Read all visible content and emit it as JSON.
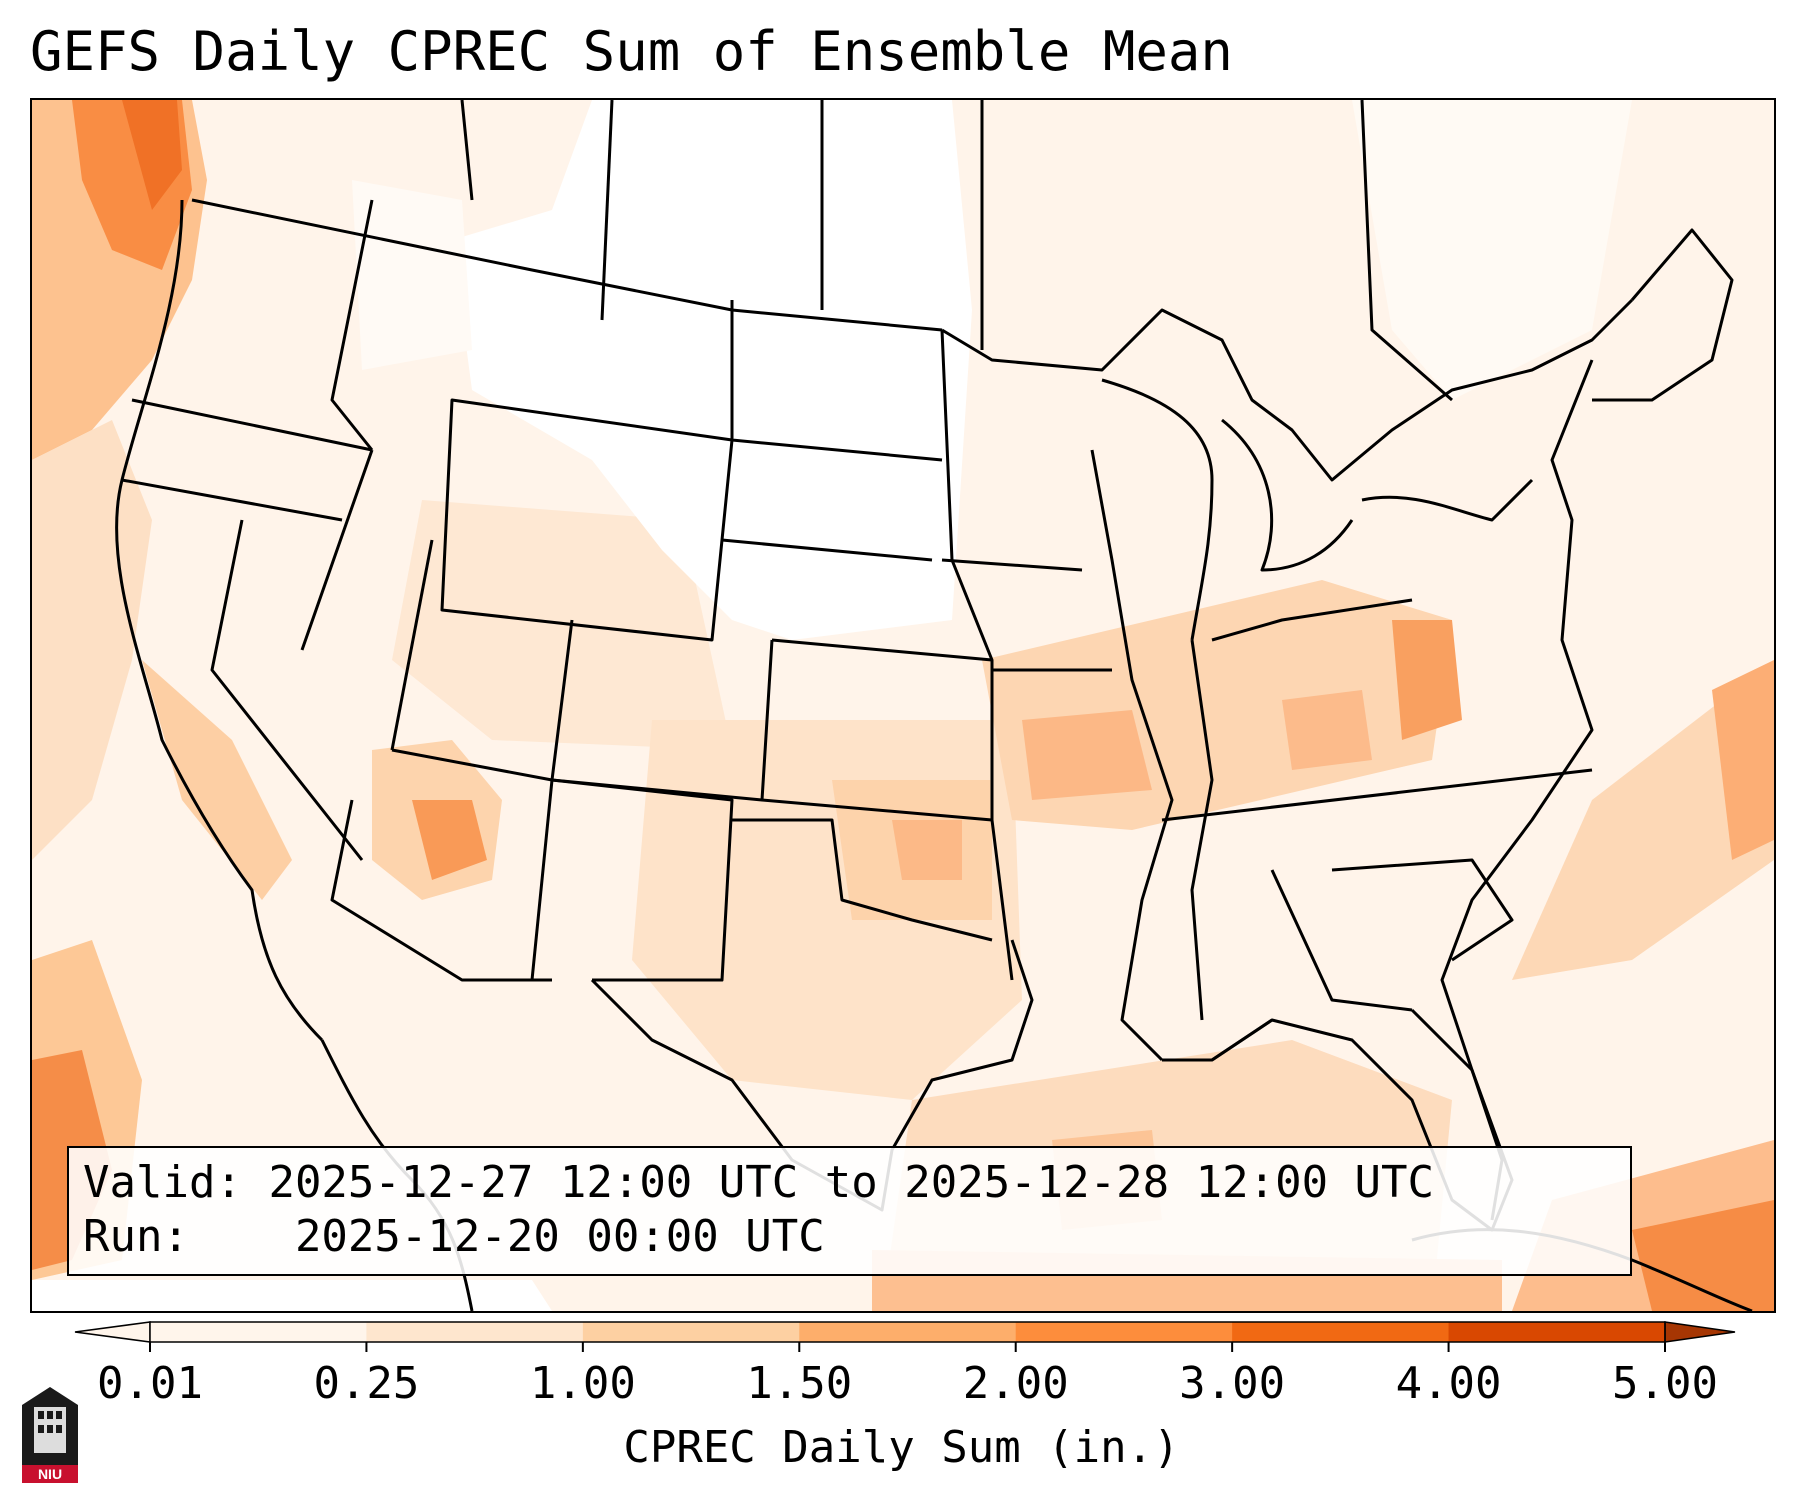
{
  "title": "GEFS Daily CPREC Sum of Ensemble Mean",
  "info": {
    "valid_label": "Valid:",
    "valid_value": "2025-12-27 12:00 UTC to 2025-12-28 12:00 UTC",
    "run_label": "Run:",
    "run_value": "2025-12-20 00:00 UTC"
  },
  "colorbar": {
    "label": "CPREC Daily Sum (in.)",
    "ticks": [
      "0.01",
      "0.25",
      "1.00",
      "1.50",
      "2.00",
      "3.00",
      "4.00",
      "5.00"
    ],
    "colors": [
      "#fff5eb",
      "#fee6ce",
      "#fdd0a2",
      "#fdae6b",
      "#fd8d3c",
      "#f16913",
      "#d94801",
      "#a63603"
    ]
  },
  "logo": {
    "text": "NIU"
  },
  "colors": {
    "ocean_bg": "#fff4ea",
    "boundary": "#000000",
    "frame": "#000000"
  }
}
